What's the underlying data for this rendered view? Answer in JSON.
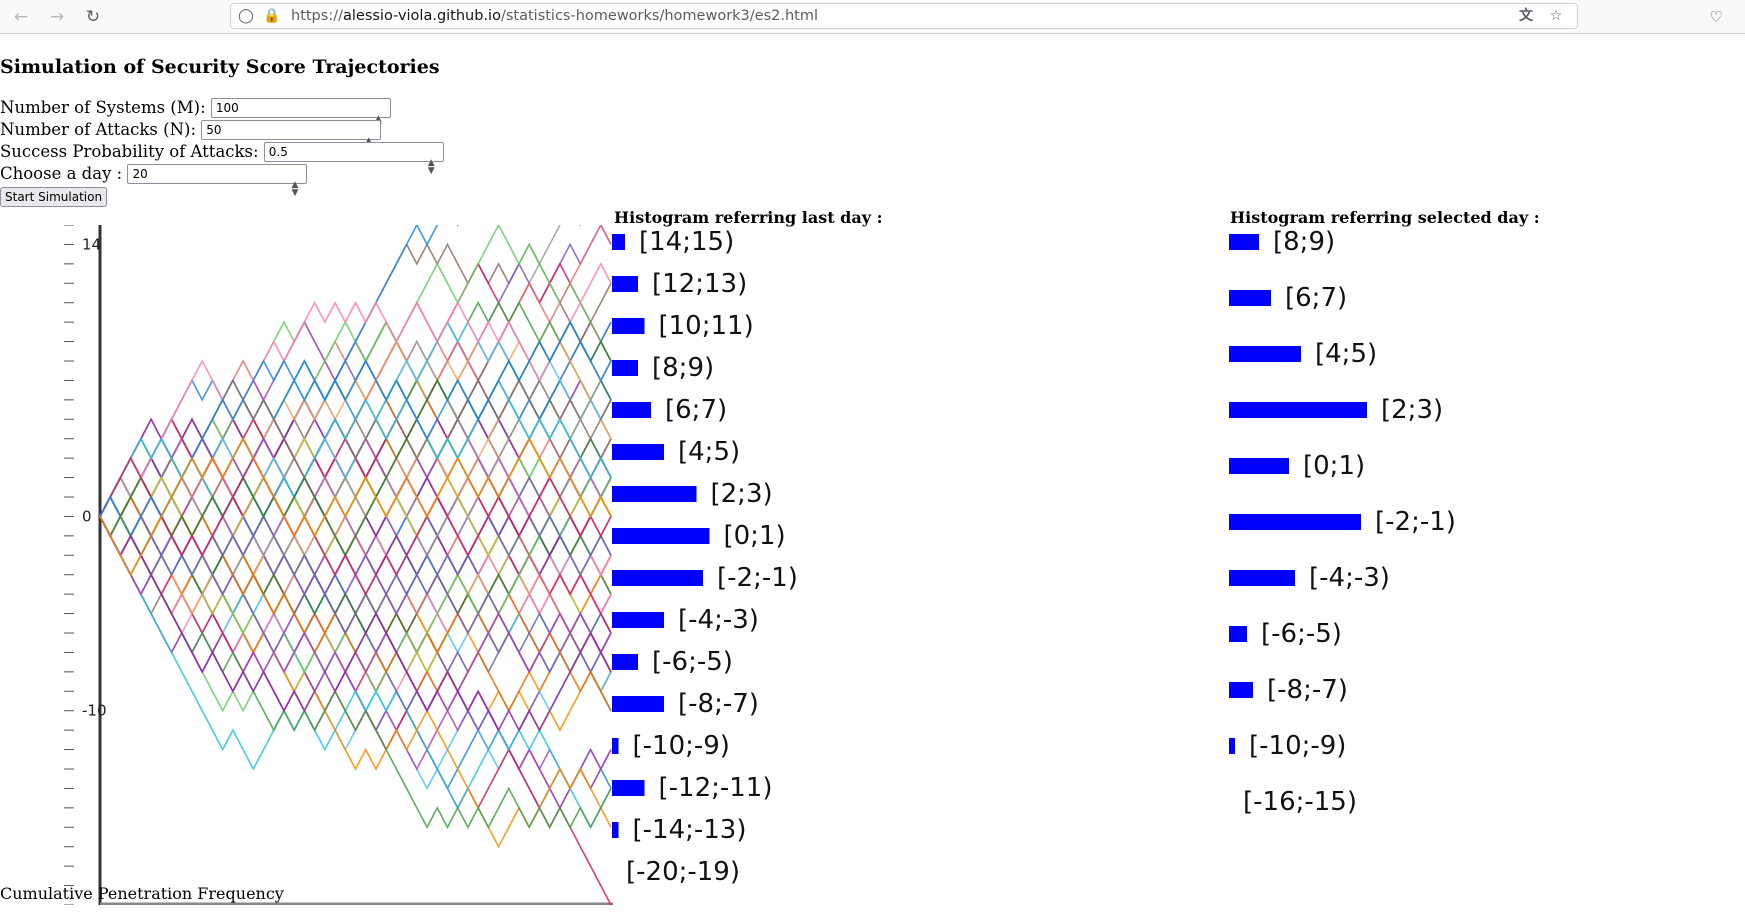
{
  "browser": {
    "url_prefix": "https://",
    "url_host": "alessio-viola.github.io",
    "url_path": "/statistics-homeworks/homework3/es2.html"
  },
  "page": {
    "title": "Simulation of Security Score Trajectories",
    "fields": [
      {
        "label": "Number of Systems (M):",
        "value": "100"
      },
      {
        "label": "Number of Attacks (N):",
        "value": "50"
      },
      {
        "label": "Success Probability of Attacks:",
        "value": "0.5"
      },
      {
        "label": "Choose a day :",
        "value": "20"
      }
    ],
    "start_button": "Start Simulation",
    "footer_label": "Cumulative Penetration Frequency"
  },
  "histograms": [
    {
      "title": "Histogram referring last day :",
      "bar_color": "#0000ff",
      "bins": [
        {
          "label": "[14;15)",
          "count": 1
        },
        {
          "label": "[12;13)",
          "count": 2
        },
        {
          "label": "[10;11)",
          "count": 2.5
        },
        {
          "label": "[8;9)",
          "count": 2
        },
        {
          "label": "[6;7)",
          "count": 3
        },
        {
          "label": "[4;5)",
          "count": 4
        },
        {
          "label": "[2;3)",
          "count": 6.5
        },
        {
          "label": "[0;1)",
          "count": 7.5
        },
        {
          "label": "[-2;-1)",
          "count": 7
        },
        {
          "label": "[-4;-3)",
          "count": 4
        },
        {
          "label": "[-6;-5)",
          "count": 2
        },
        {
          "label": "[-8;-7)",
          "count": 4
        },
        {
          "label": "[-10;-9)",
          "count": 0.5
        },
        {
          "label": "[-12;-11)",
          "count": 2.5
        },
        {
          "label": "[-14;-13)",
          "count": 0.5
        },
        {
          "label": "[-20;-19)",
          "count": 0
        }
      ]
    },
    {
      "title": "Histogram referring selected day :",
      "bar_color": "#0000ff",
      "bins": [
        {
          "label": "[8;9)",
          "count": 2.5
        },
        {
          "label": "[6;7)",
          "count": 3.5
        },
        {
          "label": "[4;5)",
          "count": 6
        },
        {
          "label": "[2;3)",
          "count": 11.5
        },
        {
          "label": "[0;1)",
          "count": 5
        },
        {
          "label": "[-2;-1)",
          "count": 11
        },
        {
          "label": "[-4;-3)",
          "count": 5.5
        },
        {
          "label": "[-6;-5)",
          "count": 1.5
        },
        {
          "label": "[-8;-7)",
          "count": 2
        },
        {
          "label": "[-10;-9)",
          "count": 0.5
        },
        {
          "label": "[-16;-15)",
          "count": 0
        }
      ]
    }
  ],
  "chart_data": [
    {
      "type": "line",
      "title": "",
      "xlabel": "",
      "ylabel": "",
      "x_range": [
        0,
        50
      ],
      "ylim": [
        -20,
        15
      ],
      "y_tick_labels": [
        "14",
        "0",
        "-10"
      ],
      "num_trajectories": 100,
      "random_walk_step": 1,
      "series_colors": [
        "#f4a460",
        "#66cc66",
        "#4fc3f7",
        "#e57373",
        "#ba68c8",
        "#8d6e63",
        "#ff80ab",
        "#9e9e9e",
        "#c0ca33",
        "#26c6da",
        "#7e57c2",
        "#ef6c00",
        "#5c6bc0",
        "#2e7d32",
        "#ab47bc",
        "#d81b60",
        "#1e88e5",
        "#43a047",
        "#8e24aa",
        "#fb8c00"
      ]
    },
    {
      "type": "bar",
      "title": "Histogram referring last day :",
      "orientation": "horizontal",
      "categories": [
        "[14;15)",
        "[12;13)",
        "[10;11)",
        "[8;9)",
        "[6;7)",
        "[4;5)",
        "[2;3)",
        "[0;1)",
        "[-2;-1)",
        "[-4;-3)",
        "[-6;-5)",
        "[-8;-7)",
        "[-10;-9)",
        "[-12;-11)",
        "[-14;-13)",
        "[-20;-19)"
      ],
      "values": [
        1,
        2,
        2.5,
        2,
        3,
        4,
        6.5,
        7.5,
        7,
        4,
        2,
        4,
        0.5,
        2.5,
        0.5,
        0
      ]
    },
    {
      "type": "bar",
      "title": "Histogram referring selected day :",
      "orientation": "horizontal",
      "categories": [
        "[8;9)",
        "[6;7)",
        "[4;5)",
        "[2;3)",
        "[0;1)",
        "[-2;-1)",
        "[-4;-3)",
        "[-6;-5)",
        "[-8;-7)",
        "[-10;-9)",
        "[-16;-15)"
      ],
      "values": [
        2.5,
        3.5,
        6,
        11.5,
        5,
        11,
        5.5,
        1.5,
        2,
        0.5,
        0
      ]
    }
  ]
}
